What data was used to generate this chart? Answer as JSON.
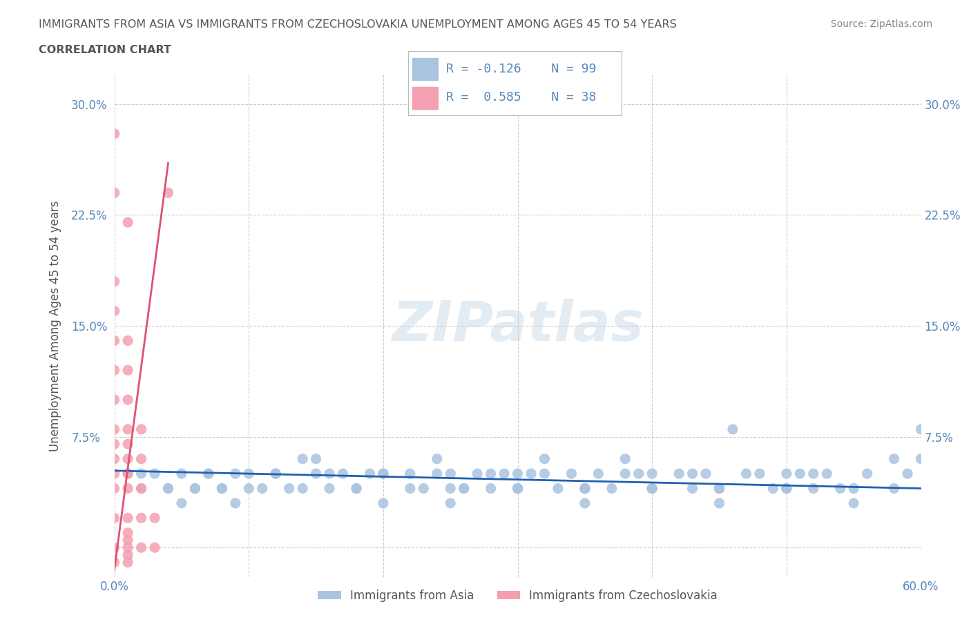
{
  "title_line1": "IMMIGRANTS FROM ASIA VS IMMIGRANTS FROM CZECHOSLOVAKIA UNEMPLOYMENT AMONG AGES 45 TO 54 YEARS",
  "title_line2": "CORRELATION CHART",
  "source": "Source: ZipAtlas.com",
  "xlabel": "",
  "ylabel": "Unemployment Among Ages 45 to 54 years",
  "xlim": [
    0.0,
    0.6
  ],
  "ylim": [
    -0.02,
    0.32
  ],
  "xticks": [
    0.0,
    0.1,
    0.2,
    0.3,
    0.4,
    0.5,
    0.6
  ],
  "xticklabels": [
    "0.0%",
    "",
    "",
    "",
    "",
    "",
    "60.0%"
  ],
  "yticks": [
    0.0,
    0.075,
    0.15,
    0.225,
    0.3
  ],
  "yticklabels": [
    "",
    "7.5%",
    "15.0%",
    "22.5%",
    "30.0%"
  ],
  "grid_color": "#cccccc",
  "background_color": "#ffffff",
  "watermark": "ZIPatlas",
  "legend_r1": "R = -0.126",
  "legend_n1": "N = 99",
  "legend_r2": "R =  0.585",
  "legend_n2": "N = 38",
  "color_asia": "#aac4e0",
  "color_czecho": "#f4a0b0",
  "line_color_asia": "#2060b0",
  "line_color_czecho": "#e0406080",
  "title_color": "#555555",
  "axis_label_color": "#555555",
  "tick_color": "#5588bb",
  "legend_text_color": "#5588bb",
  "asia_x": [
    0.02,
    0.04,
    0.05,
    0.06,
    0.07,
    0.08,
    0.09,
    0.1,
    0.11,
    0.12,
    0.13,
    0.14,
    0.15,
    0.16,
    0.17,
    0.18,
    0.19,
    0.2,
    0.22,
    0.23,
    0.24,
    0.25,
    0.26,
    0.27,
    0.28,
    0.29,
    0.3,
    0.31,
    0.32,
    0.33,
    0.34,
    0.35,
    0.36,
    0.37,
    0.38,
    0.39,
    0.4,
    0.42,
    0.43,
    0.44,
    0.45,
    0.46,
    0.48,
    0.5,
    0.51,
    0.52,
    0.53,
    0.55,
    0.58,
    0.59,
    0.01,
    0.02,
    0.03,
    0.04,
    0.05,
    0.06,
    0.07,
    0.08,
    0.09,
    0.1,
    0.12,
    0.14,
    0.16,
    0.18,
    0.2,
    0.22,
    0.24,
    0.26,
    0.28,
    0.3,
    0.32,
    0.35,
    0.38,
    0.4,
    0.43,
    0.45,
    0.47,
    0.49,
    0.52,
    0.54,
    0.56,
    0.58,
    0.6,
    0.25,
    0.3,
    0.35,
    0.4,
    0.45,
    0.5,
    0.55,
    0.6,
    0.15,
    0.2,
    0.25,
    0.3,
    0.35,
    0.4,
    0.45,
    0.5
  ],
  "asia_y": [
    0.05,
    0.04,
    0.03,
    0.04,
    0.05,
    0.04,
    0.03,
    0.05,
    0.04,
    0.05,
    0.04,
    0.06,
    0.05,
    0.04,
    0.05,
    0.04,
    0.05,
    0.03,
    0.05,
    0.04,
    0.06,
    0.05,
    0.04,
    0.05,
    0.04,
    0.05,
    0.04,
    0.05,
    0.06,
    0.04,
    0.05,
    0.04,
    0.05,
    0.04,
    0.06,
    0.05,
    0.04,
    0.05,
    0.04,
    0.05,
    0.04,
    0.08,
    0.05,
    0.04,
    0.05,
    0.04,
    0.05,
    0.04,
    0.06,
    0.05,
    0.05,
    0.04,
    0.05,
    0.04,
    0.05,
    0.04,
    0.05,
    0.04,
    0.05,
    0.04,
    0.05,
    0.04,
    0.05,
    0.04,
    0.05,
    0.04,
    0.05,
    0.04,
    0.05,
    0.04,
    0.05,
    0.04,
    0.05,
    0.04,
    0.05,
    0.04,
    0.05,
    0.04,
    0.05,
    0.04,
    0.05,
    0.04,
    0.08,
    0.03,
    0.04,
    0.03,
    0.04,
    0.03,
    0.04,
    0.03,
    0.06,
    0.06,
    0.05,
    0.04,
    0.05,
    0.04,
    0.05,
    0.04,
    0.05
  ],
  "czecho_x": [
    0.0,
    0.0,
    0.0,
    0.0,
    0.0,
    0.0,
    0.0,
    0.0,
    0.0,
    0.0,
    0.0,
    0.0,
    0.0,
    0.0,
    0.0,
    0.01,
    0.01,
    0.01,
    0.01,
    0.01,
    0.01,
    0.01,
    0.01,
    0.01,
    0.01,
    0.01,
    0.01,
    0.01,
    0.01,
    0.01,
    0.02,
    0.02,
    0.02,
    0.02,
    0.02,
    0.03,
    0.03,
    0.04
  ],
  "czecho_y": [
    0.0,
    0.02,
    0.04,
    0.05,
    0.06,
    0.07,
    0.08,
    0.1,
    0.12,
    0.14,
    0.16,
    0.18,
    0.24,
    0.28,
    -0.01,
    0.0,
    0.02,
    0.04,
    0.05,
    0.06,
    0.07,
    0.08,
    0.1,
    0.12,
    0.14,
    0.22,
    -0.01,
    -0.005,
    0.005,
    0.01,
    0.0,
    0.02,
    0.04,
    0.06,
    0.08,
    0.0,
    0.02,
    0.24
  ],
  "asia_trend_x": [
    0.0,
    0.6
  ],
  "asia_trend_y": [
    0.052,
    0.04
  ],
  "czecho_trend_x": [
    0.0,
    0.04
  ],
  "czecho_trend_y": [
    -0.015,
    0.26
  ]
}
